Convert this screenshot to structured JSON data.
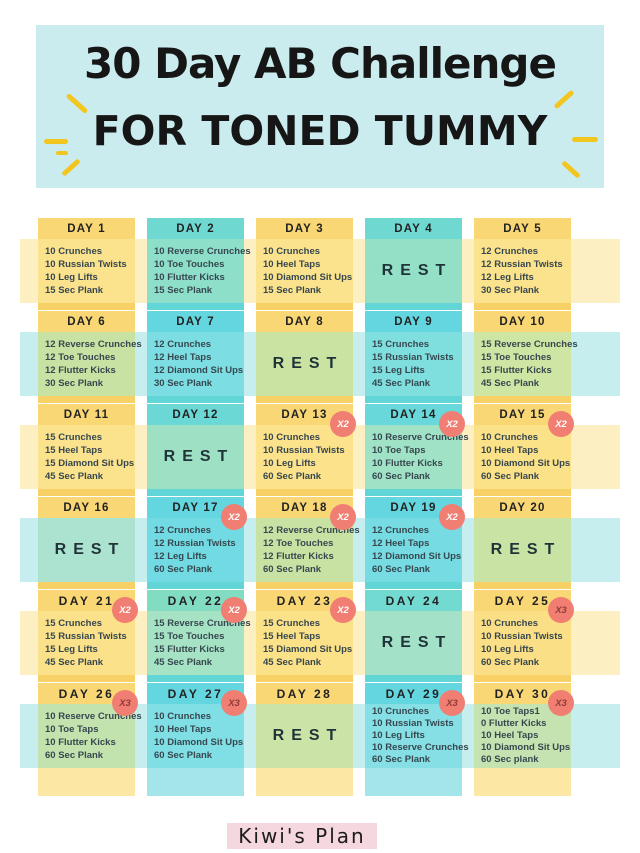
{
  "title": {
    "line1": "30 Day AB Challenge",
    "line2": "FOR TONED TUMMY"
  },
  "banner": {
    "bg": "#CBECEF",
    "text_color": "#161616",
    "sparkle_color": "#F2C61F"
  },
  "badge": {
    "bg": "#F07E72",
    "x2_text_color": "#FFFFFF",
    "x3_text_color": "#8F3D36"
  },
  "footer": {
    "brand": "Kiwi's Plan",
    "band_color": "#F5D7DF"
  },
  "grid": {
    "rest_label": "REST",
    "row_bands": [
      "#FCF0C3",
      "#C6EEEF",
      "#FCF0C3",
      "#C6EEEF",
      "#FCF0C3",
      "#C6EEEF"
    ],
    "days": [
      {
        "label": "DAY 1",
        "rest": false,
        "multiplier": "",
        "exercises": [
          "10 Crunches",
          "10 Russian Twists",
          "10 Leg Lifts",
          "15 Sec Plank"
        ],
        "colors": {
          "header": "#F9D774",
          "body": "#FBE28D",
          "stub": "#F7D166"
        }
      },
      {
        "label": "DAY 2",
        "rest": false,
        "multiplier": "",
        "exercises": [
          "10 Reverse Crunches",
          "10 Toe Touches",
          "10 Flutter Kicks",
          "15 Sec Plank"
        ],
        "colors": {
          "header": "#6FD9D1",
          "body": "#8DDFC9",
          "stub": "#62D6D6"
        }
      },
      {
        "label": "DAY 3",
        "rest": false,
        "multiplier": "",
        "exercises": [
          "10 Crunches",
          "10 Heel Taps",
          "10 Diamond Sit Ups",
          "15 Sec Plank"
        ],
        "colors": {
          "header": "#F9D774",
          "body": "#FBE28D",
          "stub": "#F7D166"
        }
      },
      {
        "label": "DAY 4",
        "rest": true,
        "multiplier": "",
        "exercises": [],
        "colors": {
          "header": "#6FD9D1",
          "body": "#93E0C6",
          "stub": "#62D6D6"
        }
      },
      {
        "label": "DAY 5",
        "rest": false,
        "multiplier": "",
        "exercises": [
          "12 Crunches",
          "12 Russian Twists",
          "12 Leg Lifts",
          "30 Sec Plank"
        ],
        "colors": {
          "header": "#F9D774",
          "body": "#FBE28D",
          "stub": "#F7D166"
        }
      },
      {
        "label": "DAY 6",
        "rest": false,
        "multiplier": "",
        "exercises": [
          "12 Reverse Crunches",
          "12 Toe Touches",
          "12 Flutter Kicks",
          "30 Sec Plank"
        ],
        "colors": {
          "header": "#F9D774",
          "body": "#C8E2A4",
          "stub": "#F7D166"
        }
      },
      {
        "label": "DAY 7",
        "rest": false,
        "multiplier": "",
        "exercises": [
          "12 Crunches",
          "12 Heel Taps",
          "12 Diamond Sit Ups",
          "30 Sec Plank"
        ],
        "colors": {
          "header": "#63D6E0",
          "body": "#7CDDE3",
          "stub": "#62D6D6"
        }
      },
      {
        "label": "DAY 8",
        "rest": true,
        "multiplier": "",
        "exercises": [],
        "colors": {
          "header": "#F9D774",
          "body": "#CBE3A2",
          "stub": "#F7D166"
        }
      },
      {
        "label": "DAY 9",
        "rest": false,
        "multiplier": "",
        "exercises": [
          "15 Crunches",
          "15 Russian Twists",
          "15 Leg Lifts",
          "45 Sec Plank"
        ],
        "colors": {
          "header": "#63D6E0",
          "body": "#7FDFDF",
          "stub": "#62D6D6"
        }
      },
      {
        "label": "DAY 10",
        "rest": false,
        "multiplier": "",
        "exercises": [
          "15 Reverse Crunches",
          "15 Toe Touches",
          "15 Flutter Kicks",
          "45 Sec Plank"
        ],
        "colors": {
          "header": "#F9D774",
          "body": "#CFE5A3",
          "stub": "#F7D166"
        }
      },
      {
        "label": "DAY 11",
        "rest": false,
        "multiplier": "",
        "exercises": [
          "15 Crunches",
          "15 Heel Taps",
          "15 Diamond Sit Ups",
          "45 Sec Plank"
        ],
        "colors": {
          "header": "#F9D774",
          "body": "#FBE28D",
          "stub": "#F7D166"
        }
      },
      {
        "label": "DAY 12",
        "rest": true,
        "multiplier": "",
        "exercises": [],
        "colors": {
          "header": "#6BD8D6",
          "body": "#9EE0C4",
          "stub": "#62D6D6"
        }
      },
      {
        "label": "DAY 13",
        "rest": false,
        "multiplier": "X2",
        "exercises": [
          "10 Crunches",
          "10 Russian Twists",
          "10 Leg Lifts",
          "60 Sec Plank"
        ],
        "colors": {
          "header": "#F9D774",
          "body": "#FBE28B",
          "stub": "#F7D166"
        }
      },
      {
        "label": "DAY 14",
        "rest": false,
        "multiplier": "X2",
        "exercises": [
          "10 Reserve Crunches",
          "10 Toe Taps",
          "10 Flutter Kicks",
          "60 Sec Plank"
        ],
        "colors": {
          "header": "#68D8DA",
          "body": "#9FE2C6",
          "stub": "#62D6D6"
        }
      },
      {
        "label": "DAY 15",
        "rest": false,
        "multiplier": "X2",
        "exercises": [
          "10 Crunches",
          "10 Heel Taps",
          "10 Diamond Sit Ups",
          "60 Sec Plank"
        ],
        "colors": {
          "header": "#F9D774",
          "body": "#FBE187",
          "stub": "#F7D166"
        }
      },
      {
        "label": "DAY 16",
        "rest": true,
        "multiplier": "",
        "exercises": [],
        "colors": {
          "header": "#F9D774",
          "body": "#ACE3D0",
          "stub": "#F7D166"
        }
      },
      {
        "label": "DAY 17",
        "rest": false,
        "multiplier": "X2",
        "exercises": [
          "12 Crunches",
          "12 Russian Twists",
          "12 Leg Lifts",
          "60 Sec Plank"
        ],
        "colors": {
          "header": "#63D6E0",
          "body": "#72DAE3",
          "stub": "#62D6D6"
        }
      },
      {
        "label": "DAY 18",
        "rest": false,
        "multiplier": "X2",
        "exercises": [
          "12 Reverse Crunches",
          "12 Toe Touches",
          "12 Flutter Kicks",
          "60 Sec Plank"
        ],
        "colors": {
          "header": "#F9D774",
          "body": "#C8E2A4",
          "stub": "#F7D166"
        }
      },
      {
        "label": "DAY 19",
        "rest": false,
        "multiplier": "X2",
        "exercises": [
          "12 Crunches",
          "12 Heel Taps",
          "12 Diamond Sit Ups",
          "60 Sec Plank"
        ],
        "colors": {
          "header": "#63D6E0",
          "body": "#76DBE2",
          "stub": "#62D6D6"
        }
      },
      {
        "label": "DAY 20",
        "rest": true,
        "multiplier": "",
        "exercises": [],
        "colors": {
          "header": "#F9D774",
          "body": "#C9E3A5",
          "stub": "#F7D166"
        }
      },
      {
        "label": "DAY 21",
        "rest": false,
        "multiplier": "X2",
        "exercises": [
          "15 Crunches",
          "15 Russian Twists",
          "15 Leg Lifts",
          "45 Sec Plank"
        ],
        "colors": {
          "header": "#F9D774",
          "body": "#FBE189",
          "stub": "#F7D166"
        }
      },
      {
        "label": "DAY 22",
        "rest": false,
        "multiplier": "X2",
        "exercises": [
          "15 Reverse Crunches",
          "15 Toe Touches",
          "15 Flutter Kicks",
          "45 Sec Plank"
        ],
        "colors": {
          "header": "#82DCC2",
          "body": "#A5E3C4",
          "stub": "#62D6D6"
        }
      },
      {
        "label": "DAY 23",
        "rest": false,
        "multiplier": "X2",
        "exercises": [
          "15 Crunches",
          "15 Heel Taps",
          "15 Diamond Sit Ups",
          "45 Sec Plank"
        ],
        "colors": {
          "header": "#F9D774",
          "body": "#FBE187",
          "stub": "#F7D166"
        }
      },
      {
        "label": "DAY 24",
        "rest": true,
        "multiplier": "",
        "exercises": [],
        "colors": {
          "header": "#73DAD2",
          "body": "#A3E2C8",
          "stub": "#62D6D6"
        }
      },
      {
        "label": "DAY 25",
        "rest": false,
        "multiplier": "X3",
        "exercises": [
          "10 Crunches",
          "10 Russian Twists",
          "10 Leg Lifts",
          "60 Sec Plank"
        ],
        "colors": {
          "header": "#F9D774",
          "body": "#FBDF86",
          "stub": "#F7D166"
        }
      },
      {
        "label": "DAY 26",
        "rest": false,
        "multiplier": "X3",
        "exercises": [
          "10 Reserve Crunches",
          "10 Toe Taps",
          "10 Flutter Kicks",
          "60 Sec Plank"
        ],
        "colors": {
          "header": "#F9D774",
          "body": "#C2E2AE",
          "stub": "#FCE7A4"
        }
      },
      {
        "label": "DAY 27",
        "rest": false,
        "multiplier": "X3",
        "exercises": [
          "10 Crunches",
          "10 Heel Taps",
          "10 Diamond Sit Ups",
          "60 Sec Plank"
        ],
        "colors": {
          "header": "#63D6E0",
          "body": "#80DEE5",
          "stub": "#A3E5E8"
        }
      },
      {
        "label": "DAY 28",
        "rest": true,
        "multiplier": "",
        "exercises": [],
        "colors": {
          "header": "#F9D774",
          "body": "#CBE3A6",
          "stub": "#FCE7A4"
        }
      },
      {
        "label": "DAY 29",
        "rest": false,
        "multiplier": "X3",
        "exercises": [
          "10 Crunches",
          "10 Russian Twists",
          "10 Leg Lifts",
          "10 Reserve Crunches",
          "60 Sec Plank"
        ],
        "colors": {
          "header": "#63D6E0",
          "body": "#85DFE4",
          "stub": "#A3E5E8"
        }
      },
      {
        "label": "DAY 30",
        "rest": false,
        "multiplier": "X3",
        "exercises": [
          "10 Toe Taps1",
          "0 Flutter Kicks",
          "10 Heel Taps",
          "10 Diamond Sit Ups",
          "60 Sec plank"
        ],
        "colors": {
          "header": "#F9D774",
          "body": "#C4E3B1",
          "stub": "#FCE7A4"
        }
      }
    ]
  }
}
